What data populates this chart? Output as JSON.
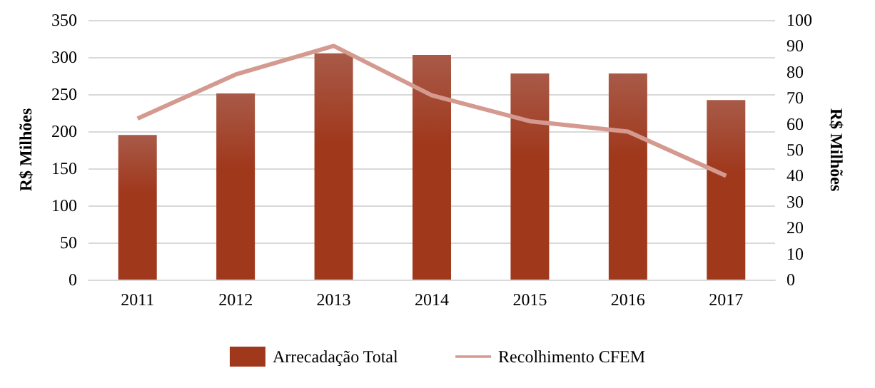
{
  "chart_data": {
    "type": "bar",
    "categories": [
      "2011",
      "2012",
      "2013",
      "2014",
      "2015",
      "2016",
      "2017"
    ],
    "series": [
      {
        "name": "Arrecadação Total",
        "color": "#a0381c",
        "values": [
          195,
          251,
          305,
          303,
          278,
          278,
          242
        ]
      },
      {
        "name": "Recolhimento CFEM",
        "type": "line",
        "axis": "y2",
        "color": "#d49a90",
        "values": [
          62,
          79,
          90,
          71,
          61,
          57,
          40
        ]
      }
    ],
    "ylabel": "R$ Milhões",
    "y2label": "R$ Milhões",
    "ylim": [
      0,
      350
    ],
    "yticks": [
      0,
      50,
      100,
      150,
      200,
      250,
      300,
      350
    ],
    "y2lim": [
      0,
      100
    ],
    "y2ticks": [
      0,
      10,
      20,
      30,
      40,
      50,
      60,
      70,
      80,
      90,
      100
    ],
    "grid": "y",
    "legend": "bottom",
    "marker": "none"
  }
}
